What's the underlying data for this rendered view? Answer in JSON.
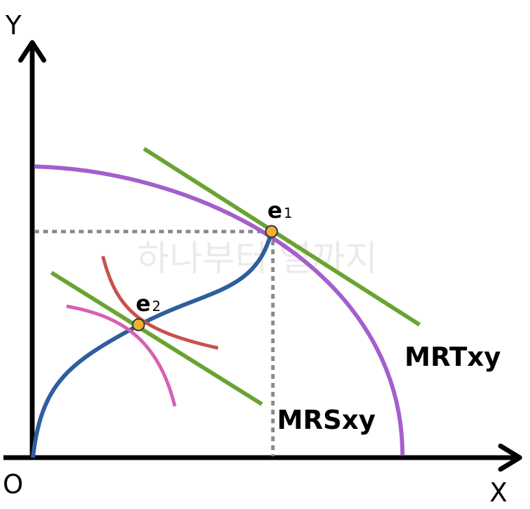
{
  "axes": {
    "y": "Y",
    "x": "X",
    "origin": "O"
  },
  "points": [
    {
      "base": "e",
      "sub": "1"
    },
    {
      "base": "e",
      "sub": "2"
    }
  ],
  "curve_labels": {
    "mrt": "MRTxy",
    "mrs": "MRSxy"
  },
  "watermark": "하나부터 열까지"
}
